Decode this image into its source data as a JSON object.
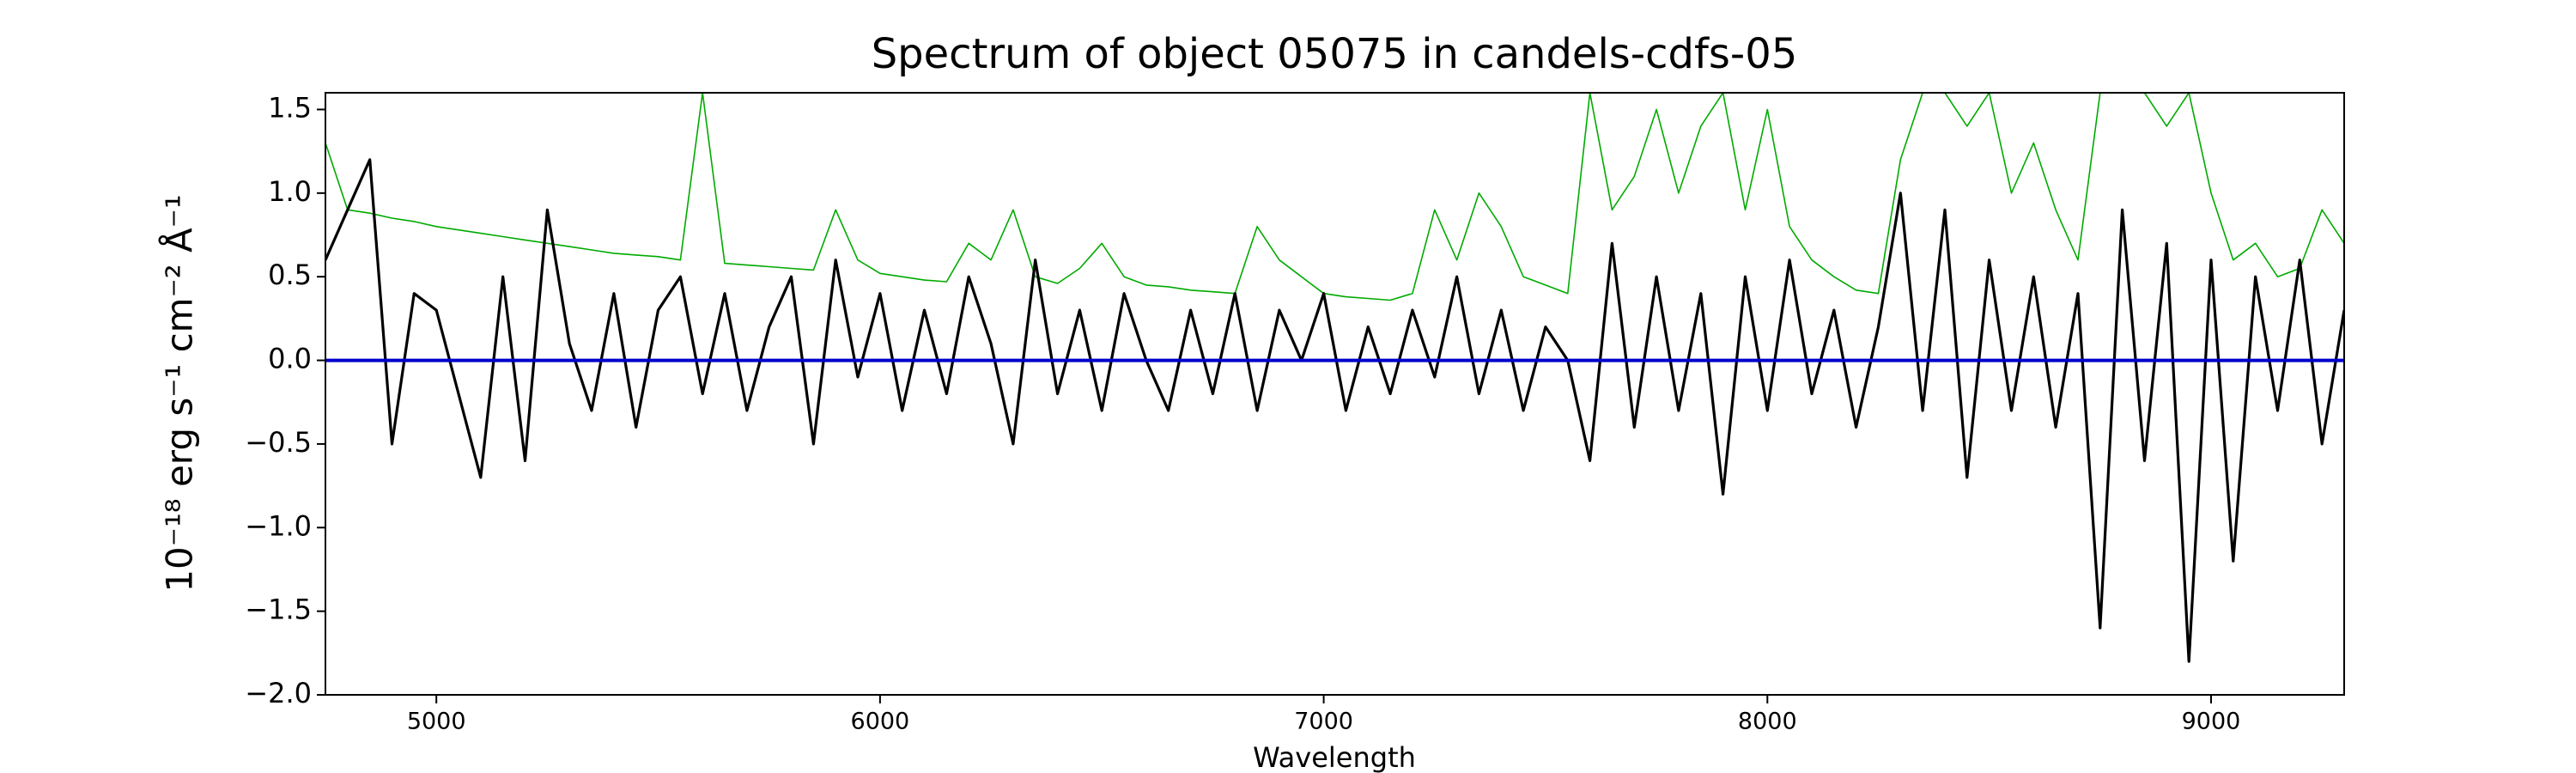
{
  "chart_data": {
    "type": "line",
    "title": "Spectrum of object 05075 in candels-cdfs-05",
    "x_label": "Wavelength",
    "y_label": "10⁻¹⁸ erg s⁻¹ cm⁻² Å⁻¹",
    "xlim": [
      4750,
      9300
    ],
    "ylim": [
      -2.0,
      1.6
    ],
    "xticks": [
      5000,
      6000,
      7000,
      8000,
      9000
    ],
    "yticks": [
      {
        "value": -2.0,
        "label": "−2.0"
      },
      {
        "value": -1.5,
        "label": "−1.5"
      },
      {
        "value": -1.0,
        "label": "−1.0"
      },
      {
        "value": -0.5,
        "label": "−0.5"
      },
      {
        "value": 0,
        "label": "0.0"
      },
      0.5,
      {
        "value": 1.0,
        "label": "1.0"
      },
      1.5
    ],
    "x": [
      4750,
      4800,
      4850,
      4900,
      4950,
      5000,
      5050,
      5100,
      5150,
      5200,
      5250,
      5300,
      5350,
      5400,
      5450,
      5500,
      5550,
      5600,
      5650,
      5700,
      5750,
      5800,
      5850,
      5900,
      5950,
      6000,
      6050,
      6100,
      6150,
      6200,
      6250,
      6300,
      6350,
      6400,
      6450,
      6500,
      6550,
      6600,
      6650,
      6700,
      6750,
      6800,
      6850,
      6900,
      6950,
      7000,
      7050,
      7100,
      7150,
      7200,
      7250,
      7300,
      7350,
      7400,
      7450,
      7500,
      7550,
      7600,
      7650,
      7700,
      7750,
      7800,
      7850,
      7900,
      7950,
      8000,
      8050,
      8100,
      8150,
      8200,
      8250,
      8300,
      8350,
      8400,
      8450,
      8500,
      8550,
      8600,
      8650,
      8700,
      8750,
      8800,
      8850,
      8900,
      8950,
      9000,
      9050,
      9100,
      9150,
      9200,
      9250,
      9300
    ],
    "series": [
      {
        "color": "#00aa00",
        "width": 1.6,
        "values": [
          1.3,
          0.9,
          0.88,
          0.85,
          0.83,
          0.8,
          0.78,
          0.76,
          0.74,
          0.72,
          0.7,
          0.68,
          0.66,
          0.64,
          0.63,
          0.62,
          0.6,
          1.6,
          0.58,
          0.57,
          0.56,
          0.55,
          0.54,
          0.9,
          0.6,
          0.52,
          0.5,
          0.48,
          0.47,
          0.7,
          0.6,
          0.9,
          0.5,
          0.46,
          0.55,
          0.7,
          0.5,
          0.45,
          0.44,
          0.42,
          0.41,
          0.4,
          0.8,
          0.6,
          0.5,
          0.4,
          0.38,
          0.37,
          0.36,
          0.4,
          0.9,
          0.6,
          1.0,
          0.8,
          0.5,
          0.45,
          0.4,
          1.6,
          0.9,
          1.1,
          1.5,
          1.0,
          1.4,
          1.6,
          0.9,
          1.5,
          0.8,
          0.6,
          0.5,
          0.42,
          0.4,
          1.2,
          1.6,
          1.6,
          1.4,
          1.6,
          1.0,
          1.3,
          0.9,
          0.6,
          1.6,
          1.6,
          1.6,
          1.4,
          1.6,
          1.0,
          0.6,
          0.7,
          0.5,
          0.55,
          0.9,
          0.7
        ]
      },
      {
        "color": "#000000",
        "width": 3.2,
        "values": [
          0.6,
          0.9,
          1.2,
          -0.5,
          0.4,
          0.3,
          -0.2,
          -0.7,
          0.5,
          -0.6,
          0.9,
          0.1,
          -0.3,
          0.4,
          -0.4,
          0.3,
          0.5,
          -0.2,
          0.4,
          -0.3,
          0.2,
          0.5,
          -0.5,
          0.6,
          -0.1,
          0.4,
          -0.3,
          0.3,
          -0.2,
          0.5,
          0.1,
          -0.5,
          0.6,
          -0.2,
          0.3,
          -0.3,
          0.4,
          0.0,
          -0.3,
          0.3,
          -0.2,
          0.4,
          -0.3,
          0.3,
          0.0,
          0.4,
          -0.3,
          0.2,
          -0.2,
          0.3,
          -0.1,
          0.5,
          -0.2,
          0.3,
          -0.3,
          0.2,
          0.0,
          -0.6,
          0.7,
          -0.4,
          0.5,
          -0.3,
          0.4,
          -0.8,
          0.5,
          -0.3,
          0.6,
          -0.2,
          0.3,
          -0.4,
          0.2,
          1.0,
          -0.3,
          0.9,
          -0.7,
          0.6,
          -0.3,
          0.5,
          -0.4,
          0.4,
          -1.6,
          0.9,
          -0.6,
          0.7,
          -1.8,
          0.6,
          -1.2,
          0.5,
          -0.3,
          0.6,
          -0.5,
          0.3
        ]
      },
      {
        "color": "#0000cc",
        "width": 4,
        "x": [
          4750,
          9300
        ],
        "values": [
          0,
          0
        ]
      }
    ]
  }
}
